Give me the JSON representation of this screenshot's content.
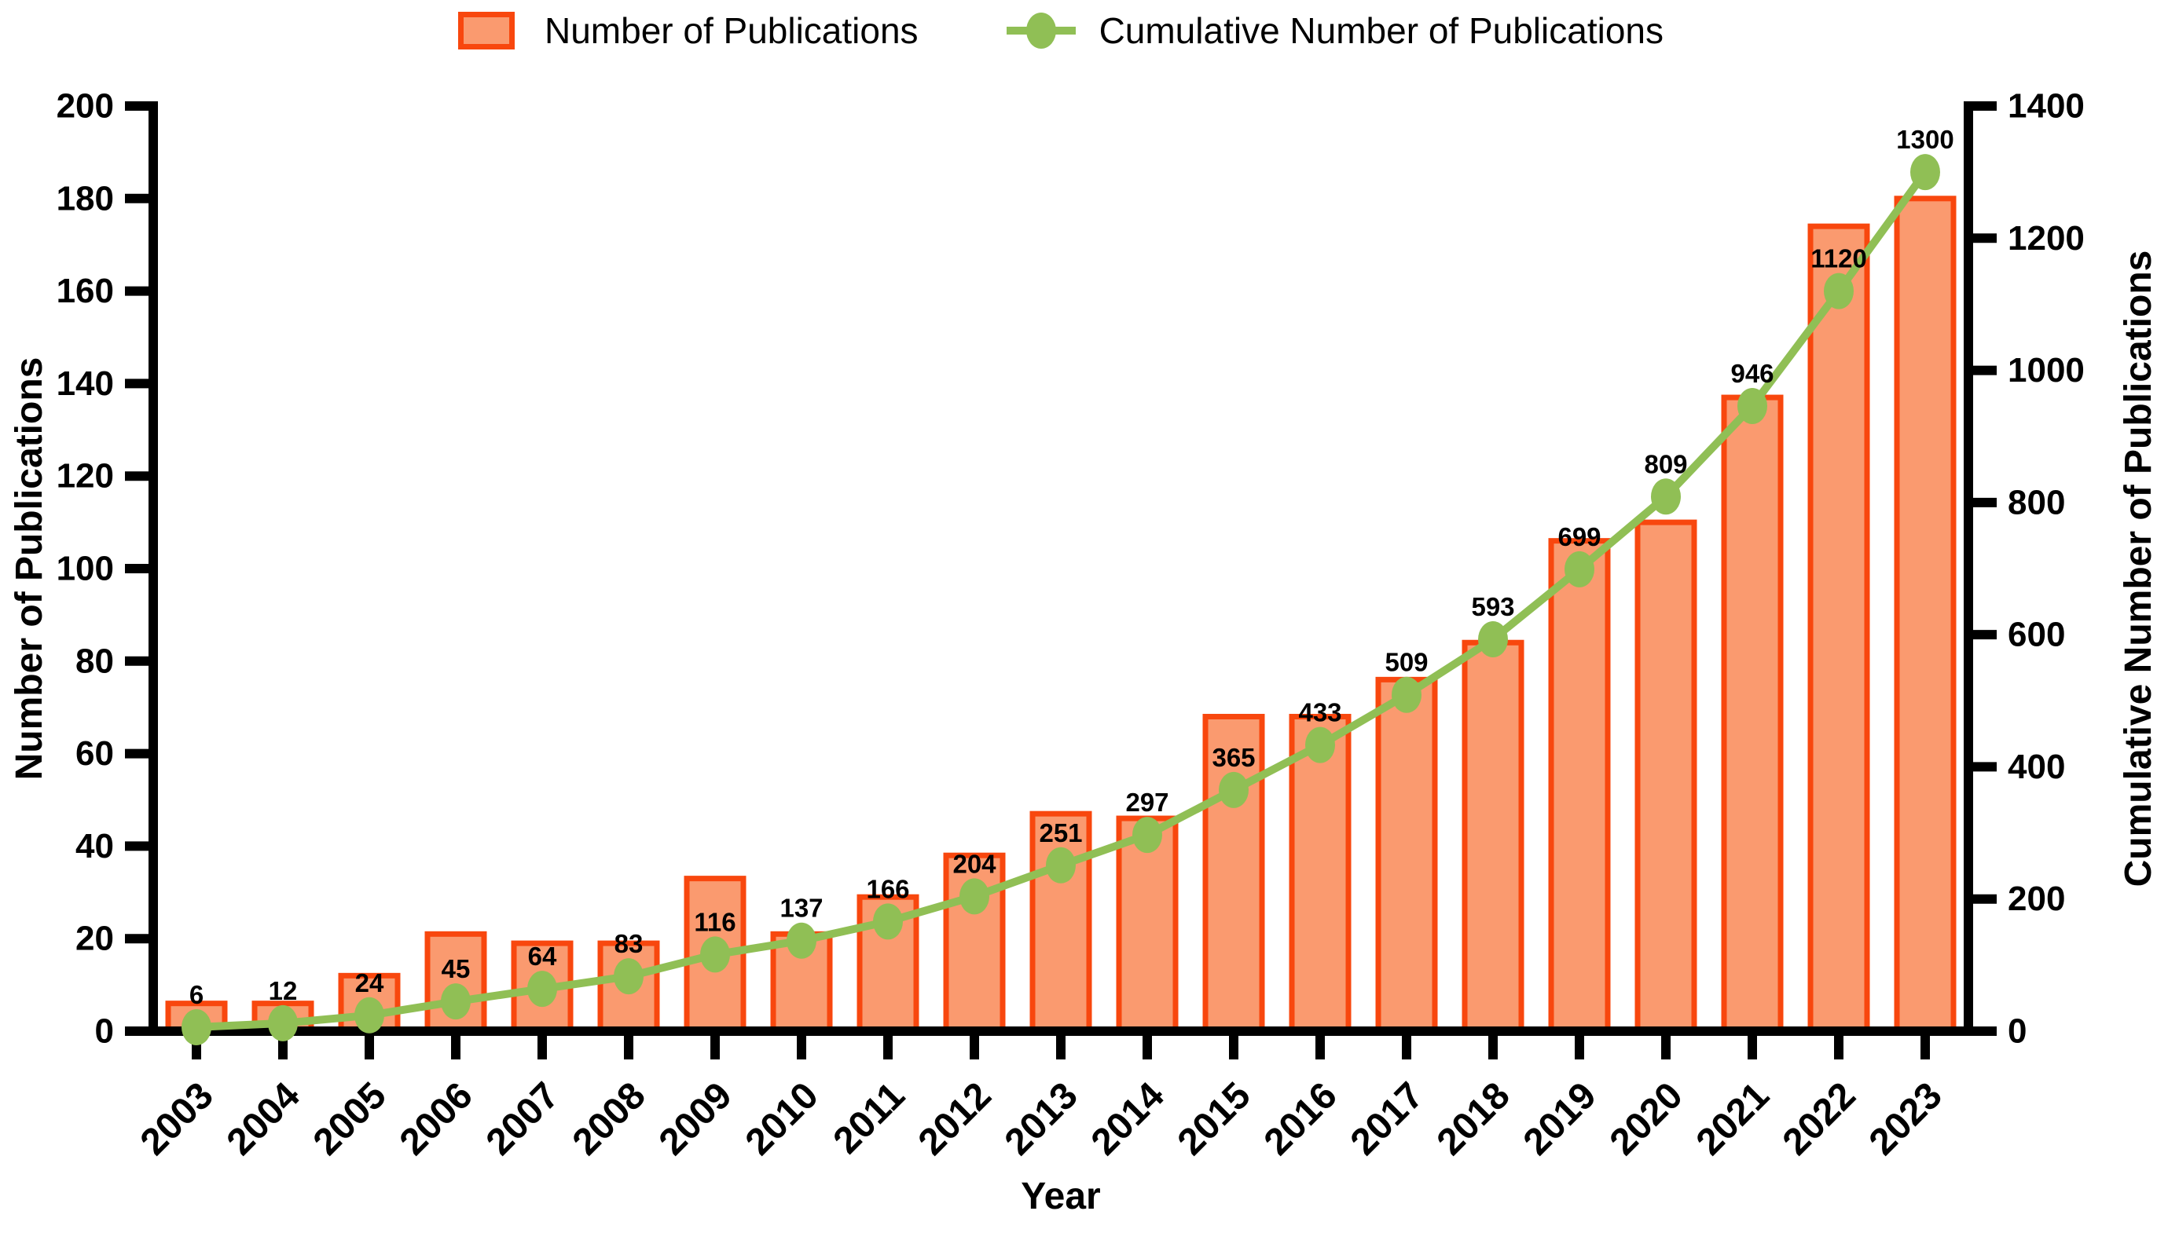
{
  "legend": {
    "bars_label": "Number of Publications",
    "line_label": "Cumulative Number of Publications"
  },
  "axes": {
    "left": {
      "title": "Number of Publications",
      "tick_labels": [
        "0",
        "20",
        "40",
        "60",
        "80",
        "100",
        "120",
        "140",
        "160",
        "180",
        "200"
      ],
      "max": 200
    },
    "right": {
      "title": "Cumulative Number of Publications",
      "tick_labels": [
        "0",
        "200",
        "400",
        "600",
        "800",
        "1000",
        "1200",
        "1400"
      ],
      "max": 1400
    },
    "x": {
      "title": "Year"
    }
  },
  "colors": {
    "bar_fill": "#FA9A6F",
    "bar_border": "#F8470E",
    "line_green": "#90BF55",
    "axis_black": "#000000"
  },
  "chart_data": {
    "type": "bar",
    "title": "",
    "xlabel": "Year",
    "ylabel_left": "Number of Publications",
    "ylabel_right": "Cumulative Number of Publications",
    "ylim_left": [
      0,
      200
    ],
    "ylim_right": [
      0,
      1400
    ],
    "grid": false,
    "legend_position": "top-center",
    "categories": [
      "2003",
      "2004",
      "2005",
      "2006",
      "2007",
      "2008",
      "2009",
      "2010",
      "2011",
      "2012",
      "2013",
      "2014",
      "2015",
      "2016",
      "2017",
      "2018",
      "2019",
      "2020",
      "2021",
      "2022",
      "2023"
    ],
    "series": [
      {
        "name": "Number of Publications",
        "type": "bar",
        "axis": "left",
        "values": [
          6,
          6,
          12,
          21,
          19,
          19,
          33,
          21,
          29,
          38,
          47,
          46,
          68,
          68,
          76,
          84,
          106,
          110,
          137,
          174,
          180
        ]
      },
      {
        "name": "Cumulative Number of Publications",
        "type": "line",
        "axis": "right",
        "values": [
          6,
          12,
          24,
          45,
          64,
          83,
          116,
          137,
          166,
          204,
          251,
          297,
          365,
          433,
          509,
          593,
          699,
          809,
          946,
          1120,
          1300
        ],
        "point_labels": [
          "6",
          "12",
          "24",
          "45",
          "64",
          "83",
          "116",
          "137",
          "166",
          "204",
          "251",
          "297",
          "365",
          "433",
          "509",
          "593",
          "699",
          "809",
          "946",
          "1120",
          "1300"
        ]
      }
    ]
  }
}
